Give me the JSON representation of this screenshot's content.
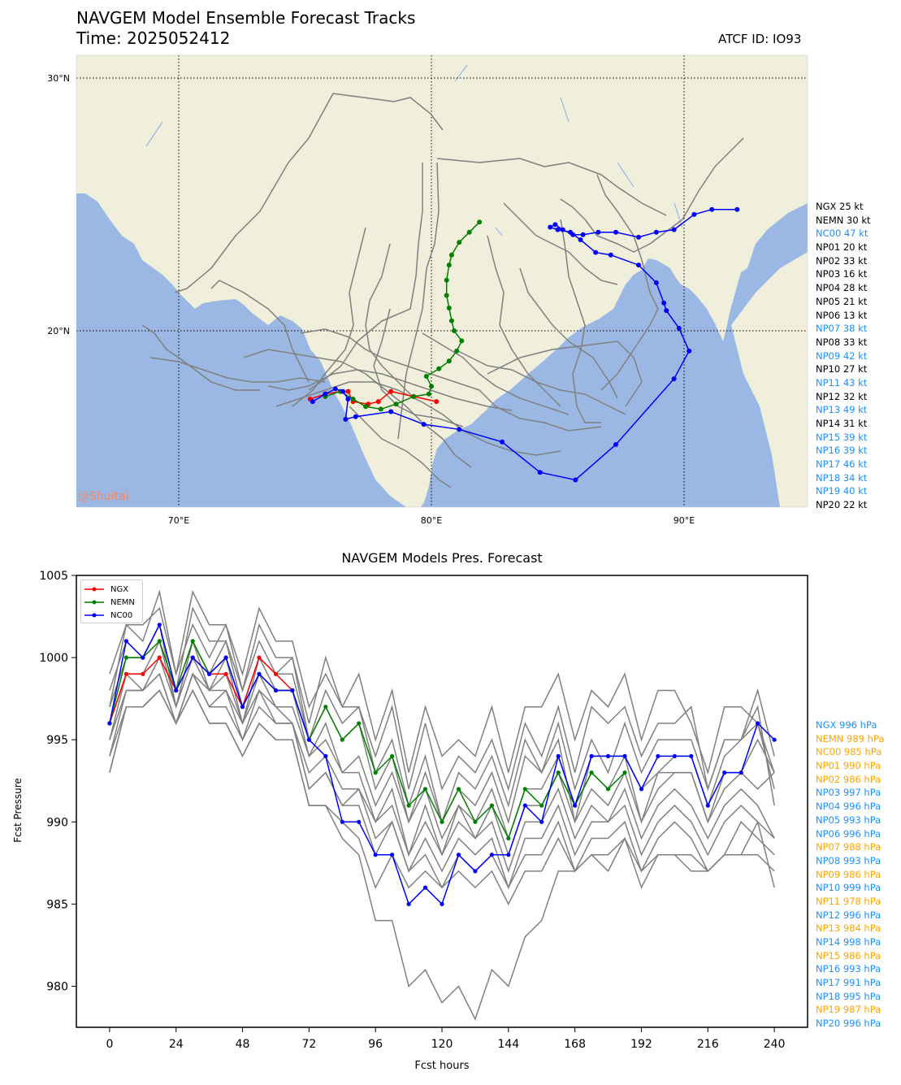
{
  "header": {
    "title_line1": "NAVGEM Model Ensemble Forecast Tracks",
    "title_line2": "Time: 2025052412",
    "atcf_id": "ATCF ID: IO93"
  },
  "map": {
    "lat_labels": [
      "30°N",
      "20°N"
    ],
    "lon_labels": [
      "70°E",
      "80°E",
      "90°E"
    ],
    "watermark": "@Shuitai",
    "colors": {
      "land": "#efefdc",
      "ocean": "#9ab8e3",
      "ensemble": "#808080",
      "ngx": "#ff0000",
      "nemn": "#008000",
      "nc00": "#0000ff"
    },
    "intensity_legend": [
      {
        "label": "NGX 25 kt",
        "color": "#000000"
      },
      {
        "label": "NEMN 30 kt",
        "color": "#000000"
      },
      {
        "label": "NC00 47 kt",
        "color": "#1e90ff"
      },
      {
        "label": "NP01 20 kt",
        "color": "#000000"
      },
      {
        "label": "NP02 33 kt",
        "color": "#000000"
      },
      {
        "label": "NP03 16 kt",
        "color": "#000000"
      },
      {
        "label": "NP04 28 kt",
        "color": "#000000"
      },
      {
        "label": "NP05 21 kt",
        "color": "#000000"
      },
      {
        "label": "NP06 13 kt",
        "color": "#000000"
      },
      {
        "label": "NP07 38 kt",
        "color": "#1e90ff"
      },
      {
        "label": "NP08 33 kt",
        "color": "#000000"
      },
      {
        "label": "NP09 42 kt",
        "color": "#1e90ff"
      },
      {
        "label": "NP10 27 kt",
        "color": "#000000"
      },
      {
        "label": "NP11 43 kt",
        "color": "#1e90ff"
      },
      {
        "label": "NP12 32 kt",
        "color": "#000000"
      },
      {
        "label": "NP13 49 kt",
        "color": "#1e90ff"
      },
      {
        "label": "NP14 31 kt",
        "color": "#000000"
      },
      {
        "label": "NP15 39 kt",
        "color": "#1e90ff"
      },
      {
        "label": "NP16 39 kt",
        "color": "#1e90ff"
      },
      {
        "label": "NP17 46 kt",
        "color": "#1e90ff"
      },
      {
        "label": "NP18 34 kt",
        "color": "#1e90ff"
      },
      {
        "label": "NP19 40 kt",
        "color": "#1e90ff"
      },
      {
        "label": "NP20 22 kt",
        "color": "#000000"
      }
    ],
    "tracks": {
      "NGX": [
        [
          75.2,
          17.3
        ],
        [
          75.8,
          17.5
        ],
        [
          76.4,
          17.6
        ],
        [
          76.7,
          17.6
        ],
        [
          76.9,
          17.2
        ],
        [
          77.5,
          17.1
        ],
        [
          77.9,
          17.2
        ],
        [
          78.4,
          17.6
        ],
        [
          79.3,
          17.4
        ],
        [
          80.2,
          17.2
        ]
      ],
      "NEMN": [
        [
          75.8,
          17.4
        ],
        [
          76.4,
          17.6
        ],
        [
          76.9,
          17.3
        ],
        [
          77.4,
          17.0
        ],
        [
          78.0,
          16.9
        ],
        [
          78.6,
          17.1
        ],
        [
          79.3,
          17.4
        ],
        [
          79.9,
          17.5
        ],
        [
          80.0,
          17.8
        ],
        [
          79.8,
          18.2
        ],
        [
          80.3,
          18.5
        ],
        [
          80.7,
          18.8
        ],
        [
          81.0,
          19.2
        ],
        [
          81.2,
          19.6
        ],
        [
          80.9,
          20.0
        ],
        [
          80.8,
          20.4
        ],
        [
          80.7,
          20.9
        ],
        [
          80.6,
          21.4
        ],
        [
          80.6,
          22.0
        ],
        [
          80.7,
          22.6
        ],
        [
          80.8,
          23.0
        ],
        [
          81.1,
          23.5
        ],
        [
          81.5,
          23.9
        ],
        [
          81.9,
          24.3
        ]
      ],
      "NC00": [
        [
          75.3,
          17.2
        ],
        [
          75.8,
          17.5
        ],
        [
          76.2,
          17.7
        ],
        [
          76.5,
          17.6
        ],
        [
          76.7,
          17.3
        ],
        [
          76.6,
          16.5
        ],
        [
          77.0,
          16.6
        ],
        [
          78.4,
          16.8
        ],
        [
          79.7,
          16.3
        ],
        [
          81.1,
          16.1
        ],
        [
          82.8,
          15.6
        ],
        [
          84.3,
          14.4
        ],
        [
          85.7,
          14.1
        ],
        [
          87.3,
          15.5
        ],
        [
          89.6,
          18.1
        ],
        [
          90.2,
          19.2
        ],
        [
          89.8,
          20.1
        ],
        [
          89.3,
          20.8
        ],
        [
          89.2,
          21.1
        ],
        [
          88.9,
          21.9
        ],
        [
          88.2,
          22.6
        ],
        [
          87.1,
          23.0
        ],
        [
          86.5,
          23.1
        ],
        [
          85.9,
          23.6
        ],
        [
          85.5,
          23.9
        ],
        [
          85.0,
          24.0
        ],
        [
          84.7,
          24.1
        ],
        [
          84.9,
          24.2
        ],
        [
          85.2,
          24.0
        ],
        [
          85.6,
          23.8
        ],
        [
          86.0,
          23.8
        ],
        [
          86.6,
          23.9
        ],
        [
          87.3,
          23.9
        ],
        [
          88.2,
          23.7
        ],
        [
          88.9,
          23.9
        ],
        [
          89.6,
          24.0
        ],
        [
          90.4,
          24.6
        ],
        [
          91.1,
          24.8
        ],
        [
          92.1,
          24.8
        ]
      ]
    }
  },
  "chart_data": {
    "type": "line",
    "title": "NAVGEM Models Pres. Forecast",
    "xlabel": "Fcst hours",
    "ylabel": "Fcst Pressure",
    "xlim": [
      -12,
      252
    ],
    "ylim": [
      977.5,
      1005
    ],
    "xticks": [
      0,
      24,
      48,
      72,
      96,
      120,
      144,
      168,
      192,
      216,
      240
    ],
    "yticks": [
      980,
      985,
      990,
      995,
      1000,
      1005
    ],
    "legend": [
      "NGX",
      "NEMN",
      "NC00"
    ],
    "series": [
      {
        "name": "NGX",
        "color": "#ff0000",
        "x": [
          0,
          6,
          12,
          18,
          24,
          30,
          36,
          42,
          48,
          54,
          60,
          66
        ],
        "values": [
          996,
          999,
          999,
          1000,
          998,
          1000,
          999,
          999,
          997,
          1000,
          999,
          998
        ]
      },
      {
        "name": "NEMN",
        "color": "#008000",
        "x": [
          0,
          6,
          12,
          18,
          24,
          30,
          36,
          42,
          48,
          54,
          60,
          66,
          72,
          78,
          84,
          90,
          96,
          102,
          108,
          114,
          120,
          126,
          132,
          138,
          144,
          150,
          156,
          162,
          168,
          174,
          180,
          186
        ],
        "values": [
          996,
          1000,
          1000,
          1001,
          998,
          1001,
          999,
          1000,
          997,
          999,
          998,
          998,
          995,
          997,
          995,
          996,
          993,
          994,
          991,
          992,
          990,
          992,
          990,
          991,
          989,
          992,
          991,
          993,
          991,
          993,
          992,
          993
        ]
      },
      {
        "name": "NC00",
        "color": "#0000ff",
        "x": [
          0,
          6,
          12,
          18,
          24,
          30,
          36,
          42,
          48,
          54,
          60,
          66,
          72,
          78,
          84,
          90,
          96,
          102,
          108,
          114,
          120,
          126,
          132,
          138,
          144,
          150,
          156,
          162,
          168,
          174,
          180,
          186,
          192,
          198,
          204,
          210,
          216,
          222,
          228,
          234,
          240
        ],
        "values": [
          996,
          1001,
          1000,
          1002,
          998,
          1000,
          999,
          1000,
          997,
          999,
          998,
          998,
          995,
          994,
          990,
          990,
          988,
          988,
          985,
          986,
          985,
          988,
          987,
          988,
          988,
          991,
          990,
          994,
          991,
          994,
          994,
          994,
          992,
          994,
          994,
          994,
          991,
          993,
          993,
          996,
          995
        ]
      }
    ],
    "ensemble_pressures": [
      [
        999,
        1002,
        1002,
        1003,
        999,
        1004,
        1002,
        1002,
        999,
        1003,
        1001,
        1001,
        997,
        999,
        997,
        999,
        995,
        998,
        993,
        997,
        994,
        995,
        994,
        997,
        993,
        997,
        997,
        999,
        995,
        998,
        997,
        999,
        995,
        998,
        998,
        996,
        993,
        997,
        997,
        996,
        993
      ],
      [
        998,
        1001,
        1000,
        1002,
        998,
        1003,
        1001,
        1001,
        998,
        1002,
        1000,
        1000,
        996,
        1000,
        997,
        997,
        994,
        997,
        992,
        996,
        992,
        994,
        993,
        995,
        992,
        996,
        994,
        997,
        993,
        997,
        996,
        997,
        994,
        996,
        996,
        997,
        992,
        995,
        995,
        996,
        992
      ],
      [
        997,
        1002,
        1001,
        1004,
        999,
        1002,
        1000,
        1002,
        998,
        1001,
        999,
        1000,
        995,
        998,
        996,
        997,
        993,
        995,
        991,
        994,
        990,
        993,
        992,
        994,
        991,
        995,
        993,
        996,
        992,
        995,
        993,
        996,
        993,
        995,
        995,
        995,
        992,
        995,
        995,
        997,
        991
      ],
      [
        997,
        1000,
        1000,
        1002,
        997,
        1001,
        999,
        1001,
        997,
        1000,
        999,
        999,
        995,
        997,
        995,
        996,
        992,
        994,
        990,
        993,
        990,
        992,
        991,
        993,
        990,
        994,
        993,
        995,
        990,
        994,
        994,
        994,
        992,
        993,
        994,
        994,
        991,
        994,
        995,
        998,
        994
      ],
      [
        996,
        999,
        999,
        1001,
        997,
        1001,
        998,
        1000,
        996,
        1000,
        998,
        998,
        994,
        996,
        993,
        994,
        991,
        993,
        990,
        992,
        989,
        991,
        990,
        992,
        989,
        992,
        992,
        994,
        991,
        993,
        992,
        994,
        990,
        993,
        993,
        993,
        990,
        993,
        993,
        995,
        993
      ],
      [
        995,
        999,
        998,
        1000,
        997,
        1000,
        998,
        999,
        996,
        999,
        997,
        997,
        994,
        995,
        993,
        993,
        990,
        992,
        988,
        991,
        988,
        991,
        989,
        991,
        988,
        991,
        991,
        993,
        990,
        992,
        991,
        993,
        990,
        992,
        993,
        993,
        990,
        992,
        993,
        992,
        993
      ],
      [
        995,
        998,
        998,
        999,
        996,
        999,
        998,
        998,
        996,
        998,
        997,
        996,
        993,
        994,
        992,
        992,
        990,
        991,
        988,
        990,
        988,
        990,
        989,
        990,
        987,
        990,
        990,
        992,
        989,
        991,
        990,
        992,
        989,
        991,
        992,
        991,
        989,
        991,
        992,
        991,
        989
      ],
      [
        994,
        998,
        998,
        999,
        996,
        999,
        997,
        998,
        995,
        998,
        996,
        996,
        992,
        993,
        991,
        992,
        989,
        990,
        987,
        989,
        987,
        989,
        988,
        989,
        986,
        989,
        989,
        991,
        988,
        990,
        990,
        991,
        988,
        990,
        991,
        990,
        988,
        990,
        991,
        990,
        986
      ],
      [
        994,
        997,
        997,
        998,
        996,
        999,
        997,
        997,
        995,
        997,
        996,
        996,
        992,
        993,
        991,
        991,
        988,
        990,
        987,
        988,
        986,
        988,
        987,
        988,
        986,
        988,
        988,
        990,
        987,
        989,
        989,
        990,
        987,
        989,
        990,
        989,
        987,
        988,
        990,
        989,
        988
      ],
      [
        993,
        997,
        997,
        998,
        996,
        998,
        996,
        996,
        994,
        996,
        995,
        995,
        991,
        991,
        990,
        989,
        986,
        988,
        986,
        987,
        986,
        987,
        986,
        987,
        985,
        987,
        987,
        989,
        987,
        988,
        987,
        989,
        986,
        988,
        988,
        988,
        987,
        988,
        988,
        988,
        987
      ],
      [
        993,
        997,
        997,
        998,
        996,
        998,
        996,
        996,
        994,
        996,
        995,
        995,
        991,
        991,
        989,
        988,
        984,
        984,
        980,
        981,
        979,
        980,
        978,
        981,
        980,
        983,
        984,
        987,
        987,
        988,
        988,
        989,
        987,
        988,
        988,
        987,
        987,
        988,
        988,
        990,
        989
      ]
    ]
  }
}
